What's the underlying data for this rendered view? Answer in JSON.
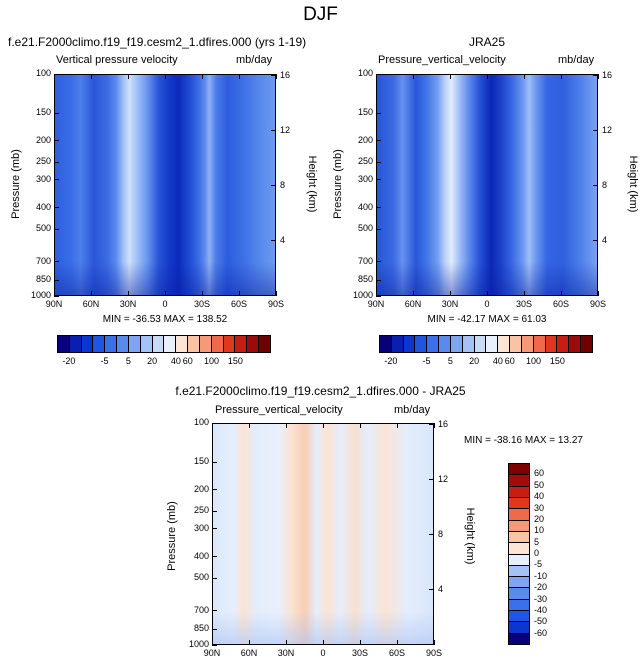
{
  "figure": {
    "title": "DJF"
  },
  "panels": [
    {
      "title_left": "f.e21.F2000climo.f19_f19.cesm2_1.dfires.000 (yrs 1-19)",
      "title_center": "",
      "var_label": "Vertical pressure velocity",
      "unit_label": "mb/day",
      "stats": "MIN = -36.53   MAX = 138.52"
    },
    {
      "title_left": "",
      "title_center": "JRA25",
      "var_label": "Pressure_vertical_velocity",
      "unit_label": "mb/day",
      "stats": "MIN = -42.17   MAX =  61.03"
    },
    {
      "title_left": "",
      "title_center": "f.e21.F2000climo.f19_f19.cesm2_1.dfires.000 - JRA25",
      "var_label": "Pressure_vertical_velocity",
      "unit_label": "mb/day",
      "stats": "MIN = -38.16   MAX =  13.27"
    }
  ],
  "axes": {
    "ylabel_left": "Pressure (mb)",
    "ylabel_right": "Height (km)",
    "x_ticks": [
      "90N",
      "60N",
      "30N",
      "0",
      "30S",
      "60S",
      "90S"
    ],
    "pressure_ticks": [
      "100",
      "150",
      "200",
      "250",
      "300",
      "400",
      "500",
      "700",
      "850",
      "1000"
    ],
    "height_ticks": [
      "16",
      "12",
      "8",
      "4"
    ]
  },
  "colorbar_main": {
    "labels": [
      "-20",
      "-5",
      "5",
      "20",
      "40",
      "60",
      "100",
      "150"
    ],
    "colors": [
      "#08007a",
      "#0a1fb0",
      "#0d35d0",
      "#1f55e0",
      "#3a70e8",
      "#5b8aee",
      "#7fa5f2",
      "#a5c2f7",
      "#c9daf9",
      "#e8f0fc",
      "#fde5d5",
      "#f9c3a6",
      "#f59a78",
      "#ee6a4a",
      "#e0381f",
      "#c81d12",
      "#9e0a0a",
      "#700000"
    ]
  },
  "colorbar_diff": {
    "labels": [
      "60",
      "50",
      "40",
      "30",
      "20",
      "10",
      "5",
      "0",
      "-5",
      "-10",
      "-20",
      "-30",
      "-40",
      "-50",
      "-60"
    ],
    "colors": [
      "#7f0000",
      "#a60a0a",
      "#c81d12",
      "#e0381f",
      "#ee6a4a",
      "#f59a78",
      "#f9c3a6",
      "#fde5d5",
      "#e8f0fc",
      "#a5c2f7",
      "#7fa5f2",
      "#5b8aee",
      "#3a70e8",
      "#1f55e0",
      "#0d35d0",
      "#08007a"
    ]
  },
  "chart_data": [
    {
      "type": "heatmap",
      "title": "f.e21.F2000climo.f19_f19.cesm2_1.dfires.000 (yrs 1-19)",
      "variable": "Vertical pressure velocity",
      "units": "mb/day",
      "xlabel": "",
      "ylabel": "Pressure (mb)",
      "ylabel_right": "Height (km)",
      "x_ticks": [
        "90N",
        "60N",
        "30N",
        "0",
        "30S",
        "60S",
        "90S"
      ],
      "y_ticks": [
        100,
        150,
        200,
        250,
        300,
        400,
        500,
        700,
        850,
        1000
      ],
      "y_scale": "log",
      "min": -36.53,
      "max": 138.52,
      "colorbar_levels": [
        -20,
        -5,
        5,
        20,
        40,
        60,
        100,
        150
      ]
    },
    {
      "type": "heatmap",
      "title": "JRA25",
      "variable": "Pressure_vertical_velocity",
      "units": "mb/day",
      "xlabel": "",
      "ylabel": "Pressure (mb)",
      "ylabel_right": "Height (km)",
      "x_ticks": [
        "90N",
        "60N",
        "30N",
        "0",
        "30S",
        "60S",
        "90S"
      ],
      "y_ticks": [
        100,
        150,
        200,
        250,
        300,
        400,
        500,
        700,
        850,
        1000
      ],
      "y_scale": "log",
      "min": -42.17,
      "max": 61.03,
      "colorbar_levels": [
        -20,
        -5,
        5,
        20,
        40,
        60,
        100,
        150
      ]
    },
    {
      "type": "heatmap",
      "title": "f.e21.F2000climo.f19_f19.cesm2_1.dfires.000 - JRA25",
      "variable": "Pressure_vertical_velocity",
      "units": "mb/day",
      "xlabel": "",
      "ylabel": "Pressure (mb)",
      "ylabel_right": "Height (km)",
      "x_ticks": [
        "90N",
        "60N",
        "30N",
        "0",
        "30S",
        "60S",
        "90S"
      ],
      "y_ticks": [
        100,
        150,
        200,
        250,
        300,
        400,
        500,
        700,
        850,
        1000
      ],
      "y_scale": "log",
      "min": -38.16,
      "max": 13.27,
      "colorbar_levels": [
        60,
        50,
        40,
        30,
        20,
        10,
        5,
        0,
        -5,
        -10,
        -20,
        -30,
        -40,
        -50,
        -60
      ]
    }
  ]
}
